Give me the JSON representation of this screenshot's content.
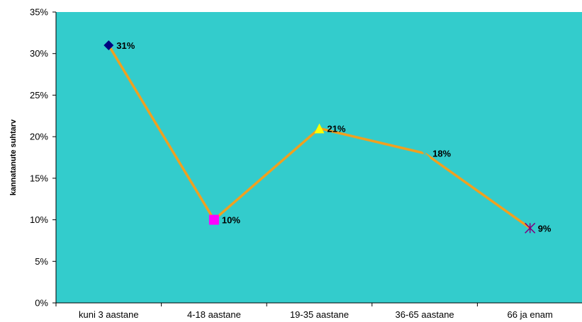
{
  "chart_data": {
    "type": "line",
    "title": "",
    "xlabel": "",
    "ylabel": "kannatanute suhtarv",
    "categories": [
      "kuni 3 aastane",
      "4-18 aastane",
      "19-35 aastane",
      "36-65 aastane",
      "66 ja enam"
    ],
    "series": [
      {
        "values": [
          31,
          10,
          21,
          18,
          9
        ],
        "data_labels": [
          "31%",
          "10%",
          "21%",
          "18%",
          "9%"
        ],
        "line_color": "#F0A020",
        "marker_shapes": [
          "diamond",
          "square",
          "triangle",
          "x",
          "star"
        ],
        "marker_colors": [
          "#000080",
          "#FF00FF",
          "#FFFF00",
          "#33CCCC",
          "#800080"
        ]
      }
    ],
    "ylim": [
      0,
      35
    ],
    "yticks": [
      0,
      5,
      10,
      15,
      20,
      25,
      30,
      35
    ],
    "ytick_labels": [
      "0%",
      "5%",
      "10%",
      "15%",
      "20%",
      "25%",
      "30%",
      "35%"
    ],
    "grid": false,
    "legend": "none",
    "plot_background": "#33CCCC"
  }
}
